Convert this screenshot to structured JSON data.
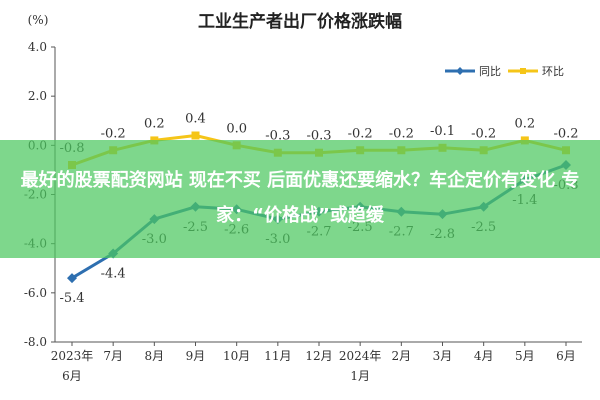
{
  "chart_data": {
    "type": "line",
    "title": "工业生产者出厂价格涨跌幅",
    "ylabel": "(%)",
    "ylim": [
      -8.0,
      4.0
    ],
    "yticks": [
      -8.0,
      -6.0,
      -4.0,
      -2.0,
      0.0,
      2.0,
      4.0
    ],
    "ytick_labels": [
      "-8.0",
      "-6.0",
      "-4.0",
      "-2.0",
      "0.0",
      "2.0",
      "4.0"
    ],
    "categories": [
      "2023年6月",
      "7月",
      "8月",
      "9月",
      "10月",
      "11月",
      "12月",
      "2024年1月",
      "2月",
      "3月",
      "4月",
      "5月",
      "6月"
    ],
    "x_tick_labels": [
      [
        "2023年",
        "6月"
      ],
      [
        "7月"
      ],
      [
        "8月"
      ],
      [
        "9月"
      ],
      [
        "10月"
      ],
      [
        "11月"
      ],
      [
        "12月"
      ],
      [
        "2024年",
        "1月"
      ],
      [
        "2月"
      ],
      [
        "3月"
      ],
      [
        "4月"
      ],
      [
        "5月"
      ],
      [
        "6月"
      ]
    ],
    "legend_position": "top-right",
    "series": [
      {
        "name": "同比",
        "color": "#2e6fb0",
        "values": [
          -5.4,
          -4.4,
          -3.0,
          -2.5,
          -2.6,
          -3.0,
          -2.7,
          -2.5,
          -2.7,
          -2.8,
          -2.5,
          -1.4,
          -0.8
        ],
        "labels": [
          "-5.4",
          "-4.4",
          "-3.0",
          "-2.5",
          "-2.6",
          "-3.0",
          "-2.7",
          "-2.5",
          "-2.7",
          "-2.8",
          "-2.5",
          "-1.4",
          "-0.8"
        ]
      },
      {
        "name": "环比",
        "color": "#f5c518",
        "values": [
          -0.8,
          -0.2,
          0.2,
          0.4,
          0.0,
          -0.3,
          -0.3,
          -0.2,
          -0.2,
          -0.1,
          -0.2,
          0.2,
          -0.2
        ],
        "labels": [
          "-0.8",
          "-0.2",
          "0.2",
          "0.4",
          "0.0",
          "-0.3",
          "-0.3",
          "-0.2",
          "-0.2",
          "-0.1",
          "-0.2",
          "0.2",
          "-0.2"
        ]
      }
    ],
    "grid": false
  },
  "overlay": {
    "text": "最好的股票配资网站 现在不买 后面优惠还要缩水？车企定价有变化 专家：“价格战”或趋缓",
    "color": "#4cc860"
  }
}
